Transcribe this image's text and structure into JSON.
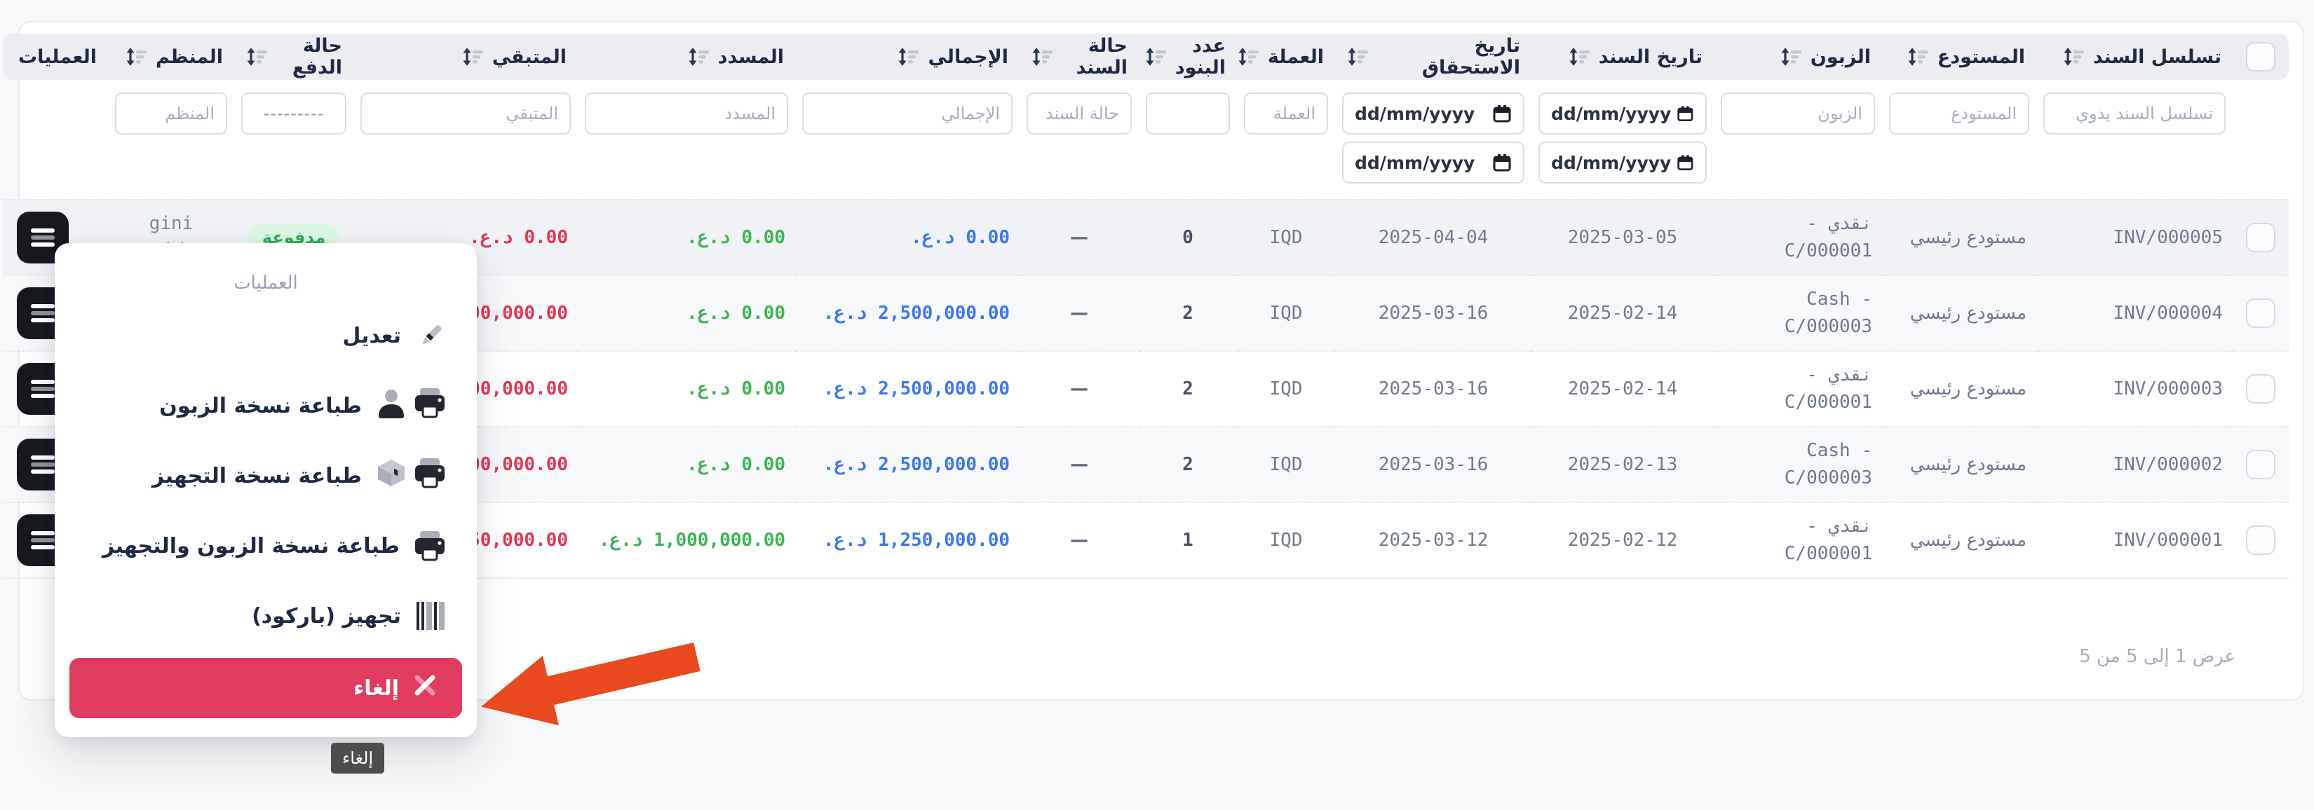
{
  "table": {
    "columns": [
      {
        "key": "checkbox",
        "label": "",
        "sortable": false
      },
      {
        "key": "seq",
        "label": "تسلسل السند",
        "sortable": true
      },
      {
        "key": "warehouse",
        "label": "المستودع",
        "sortable": true
      },
      {
        "key": "customer",
        "label": "الزبون",
        "sortable": true
      },
      {
        "key": "doc_date",
        "label": "تاريخ السند",
        "sortable": true
      },
      {
        "key": "due_date",
        "label": "تاريخ الاستحقاق",
        "sortable": true
      },
      {
        "key": "currency",
        "label": "العملة",
        "sortable": true
      },
      {
        "key": "items_count",
        "label": "عدد البنود",
        "sortable": true
      },
      {
        "key": "doc_status",
        "label": "حالة السند",
        "sortable": true
      },
      {
        "key": "total",
        "label": "الإجمالي",
        "sortable": true
      },
      {
        "key": "paid",
        "label": "المسدد",
        "sortable": true
      },
      {
        "key": "remaining",
        "label": "المتبقي",
        "sortable": true
      },
      {
        "key": "payment_status",
        "label": "حالة الدفع",
        "sortable": true
      },
      {
        "key": "organizer",
        "label": "المنظم",
        "sortable": true
      },
      {
        "key": "actions",
        "label": "العمليات",
        "sortable": false
      }
    ],
    "filters": {
      "seq_placeholder": "تسلسل السند يدوي",
      "warehouse_placeholder": "المستودع",
      "customer_placeholder": "الزبون",
      "date_value": "dd/mm/yyyy",
      "currency_placeholder": "العملة",
      "items_placeholder": "",
      "doc_status_placeholder": "حالة السند",
      "total_placeholder": "الإجمالي",
      "paid_placeholder": "المسدد",
      "remaining_placeholder": "المتبقي",
      "payment_select_value": "---------",
      "organizer_placeholder": "المنظم"
    },
    "rows": [
      {
        "seq": "INV/000005",
        "warehouse": "مستودع رئيسي",
        "customer": "نقدي - C/000001",
        "doc_date": "2025-03-05",
        "due_date": "2025-04-04",
        "currency": "IQD",
        "items_count": "0",
        "doc_status": "—",
        "total": "0.00 د.ع.",
        "paid": "0.00 د.ع.",
        "remaining": "0.00 د.ع.",
        "payment_status": "مدفوعة",
        "organizer": "gini cashier",
        "highlighted": true
      },
      {
        "seq": "INV/000004",
        "warehouse": "مستودع رئيسي",
        "customer": "Cash - C/000003",
        "doc_date": "2025-02-14",
        "due_date": "2025-03-16",
        "currency": "IQD",
        "items_count": "2",
        "doc_status": "—",
        "total": "2,500,000.00 د.ع.",
        "paid": "0.00 د.ع.",
        "remaining": "2,500,000.00 د.ع.",
        "payment_status": "",
        "organizer": "",
        "highlighted": false
      },
      {
        "seq": "INV/000003",
        "warehouse": "مستودع رئيسي",
        "customer": "نقدي - C/000001",
        "doc_date": "2025-02-14",
        "due_date": "2025-03-16",
        "currency": "IQD",
        "items_count": "2",
        "doc_status": "—",
        "total": "2,500,000.00 د.ع.",
        "paid": "0.00 د.ع.",
        "remaining": "2,500,000.00 د.ع.",
        "payment_status": "",
        "organizer": "",
        "highlighted": false
      },
      {
        "seq": "INV/000002",
        "warehouse": "مستودع رئيسي",
        "customer": "Cash - C/000003",
        "doc_date": "2025-02-13",
        "due_date": "2025-03-16",
        "currency": "IQD",
        "items_count": "2",
        "doc_status": "—",
        "total": "2,500,000.00 د.ع.",
        "paid": "0.00 د.ع.",
        "remaining": "2,500,000.00 د.ع.",
        "payment_status": "",
        "organizer": "",
        "highlighted": false
      },
      {
        "seq": "INV/000001",
        "warehouse": "مستودع رئيسي",
        "customer": "نقدي - C/000001",
        "doc_date": "2025-02-12",
        "due_date": "2025-03-12",
        "currency": "IQD",
        "items_count": "1",
        "doc_status": "—",
        "total": "1,250,000.00 د.ع.",
        "paid": "1,000,000.00 د.ع.",
        "remaining": "250,000.00 د.ع.",
        "payment_status": "",
        "organizer": "",
        "highlighted": false
      }
    ],
    "footer": {
      "pagination": "عرض 1 إلى 5 من 5"
    }
  },
  "menu": {
    "title": "العمليات",
    "items": [
      {
        "label": "تعديل",
        "icon": "pencil-icon"
      },
      {
        "label": "طباعة نسخة الزبون",
        "icon": "customer-printer-icon"
      },
      {
        "label": "طباعة نسخة التجهيز",
        "icon": "package-printer-icon"
      },
      {
        "label": "طباعة نسخة الزبون والتجهيز",
        "icon": "printer-icon"
      },
      {
        "label": "تجهيز (باركود)",
        "icon": "barcode-icon"
      }
    ],
    "cancel_label": "إلغاء",
    "tooltip": "إلغاء"
  },
  "colors": {
    "total_blue": "#3a78f2",
    "paid_green": "#3cb454",
    "remaining_red": "#e5364f",
    "badge_green_bg": "#dcf8e5",
    "badge_green_text": "#2fae58",
    "cancel_pink": "#e23b60",
    "arrow_orange": "#e8491f"
  }
}
